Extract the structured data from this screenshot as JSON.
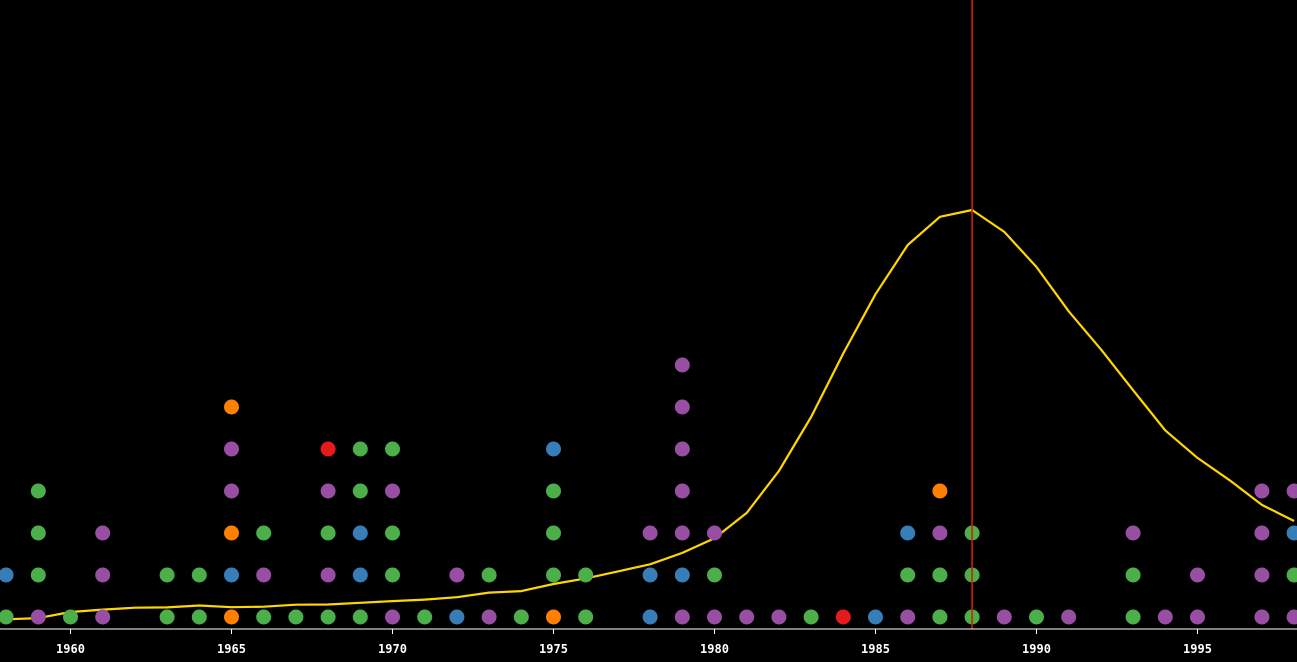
{
  "chart_data": {
    "type": "scatter",
    "xlim": [
      1958,
      1998
    ],
    "ylim_stack": [
      0,
      12
    ],
    "line_ylim": [
      0,
      100
    ],
    "grid": false,
    "background": "#000000",
    "axis_color": "#ffffff",
    "line_color": "#ffd700",
    "marker_color": "#cc2200",
    "marker_x": 1988,
    "colors": {
      "green": "#4daf4a",
      "purple": "#984ea3",
      "blue": "#377eb8",
      "orange": "#ff7f00",
      "red": "#e41a1c"
    },
    "x_ticks": [
      1960,
      1965,
      1970,
      1975,
      1980,
      1985,
      1990,
      1995
    ],
    "x_tick_labels": [
      "1960",
      "1965",
      "1970",
      "1975",
      "1980",
      "1985",
      "1990",
      "1995"
    ],
    "stacks": [
      {
        "year": 1958,
        "dots": [
          "green",
          "blue"
        ]
      },
      {
        "year": 1959,
        "dots": [
          "purple",
          "green",
          "green",
          "green"
        ]
      },
      {
        "year": 1960,
        "dots": [
          "green"
        ]
      },
      {
        "year": 1961,
        "dots": [
          "purple",
          "purple",
          "purple"
        ]
      },
      {
        "year": 1963,
        "dots": [
          "green",
          "green"
        ]
      },
      {
        "year": 1964,
        "dots": [
          "green",
          "green"
        ]
      },
      {
        "year": 1965,
        "dots": [
          "orange",
          "blue",
          "orange",
          "purple",
          "purple",
          "orange"
        ]
      },
      {
        "year": 1966,
        "dots": [
          "green",
          "purple",
          "green"
        ]
      },
      {
        "year": 1967,
        "dots": [
          "green"
        ]
      },
      {
        "year": 1968,
        "dots": [
          "green",
          "purple",
          "green",
          "purple",
          "red"
        ]
      },
      {
        "year": 1969,
        "dots": [
          "green",
          "blue",
          "blue",
          "green",
          "green"
        ]
      },
      {
        "year": 1970,
        "dots": [
          "purple",
          "green",
          "green",
          "purple",
          "green"
        ]
      },
      {
        "year": 1971,
        "dots": [
          "green"
        ]
      },
      {
        "year": 1972,
        "dots": [
          "blue",
          "purple"
        ]
      },
      {
        "year": 1973,
        "dots": [
          "purple",
          "green"
        ]
      },
      {
        "year": 1974,
        "dots": [
          "green"
        ]
      },
      {
        "year": 1975,
        "dots": [
          "orange",
          "green",
          "green",
          "green",
          "blue"
        ]
      },
      {
        "year": 1976,
        "dots": [
          "green",
          "green"
        ]
      },
      {
        "year": 1978,
        "dots": [
          "blue",
          "blue",
          "purple"
        ]
      },
      {
        "year": 1979,
        "dots": [
          "purple",
          "blue",
          "purple",
          "purple",
          "purple",
          "purple",
          "purple"
        ]
      },
      {
        "year": 1980,
        "dots": [
          "purple",
          "green",
          "purple"
        ]
      },
      {
        "year": 1981,
        "dots": [
          "purple"
        ]
      },
      {
        "year": 1982,
        "dots": [
          "purple"
        ]
      },
      {
        "year": 1983,
        "dots": [
          "green"
        ]
      },
      {
        "year": 1984,
        "dots": [
          "red"
        ]
      },
      {
        "year": 1985,
        "dots": [
          "blue"
        ]
      },
      {
        "year": 1986,
        "dots": [
          "purple",
          "green",
          "blue"
        ]
      },
      {
        "year": 1987,
        "dots": [
          "green",
          "green",
          "purple",
          "orange"
        ]
      },
      {
        "year": 1988,
        "dots": [
          "green",
          "green",
          "green"
        ]
      },
      {
        "year": 1989,
        "dots": [
          "purple"
        ]
      },
      {
        "year": 1990,
        "dots": [
          "green"
        ]
      },
      {
        "year": 1991,
        "dots": [
          "purple"
        ]
      },
      {
        "year": 1993,
        "dots": [
          "green",
          "green",
          "purple"
        ]
      },
      {
        "year": 1994,
        "dots": [
          "purple"
        ]
      },
      {
        "year": 1995,
        "dots": [
          "purple",
          "purple"
        ]
      },
      {
        "year": 1997,
        "dots": [
          "purple",
          "purple",
          "purple",
          "purple"
        ]
      },
      {
        "year": 1998,
        "dots": [
          "purple",
          "green",
          "blue",
          "purple"
        ]
      }
    ],
    "line": {
      "x": [
        1958,
        1959,
        1960,
        1961,
        1962,
        1963,
        1964,
        1965,
        1966,
        1967,
        1968,
        1969,
        1970,
        1971,
        1972,
        1973,
        1974,
        1975,
        1976,
        1977,
        1978,
        1979,
        1980,
        1981,
        1982,
        1983,
        1984,
        1985,
        1986,
        1987,
        1988,
        1989,
        1990,
        1991,
        1992,
        1993,
        1994,
        1995,
        1996,
        1997,
        1998
      ],
      "y": [
        1.5,
        2.0,
        4.5,
        5.5,
        6.3,
        6.4,
        7.2,
        6.5,
        6.7,
        7.5,
        7.6,
        8.3,
        9.0,
        9.6,
        10.6,
        12.5,
        13.1,
        16.0,
        18.3,
        21.2,
        24.1,
        28.8,
        34.8,
        45.2,
        62.4,
        84.6,
        110.7,
        135.0,
        155.2,
        166.8,
        169.6,
        160.6,
        146.2,
        128.0,
        112.4,
        95.6,
        79.1,
        67.8,
        58.6,
        48.5,
        41.9
      ]
    }
  }
}
